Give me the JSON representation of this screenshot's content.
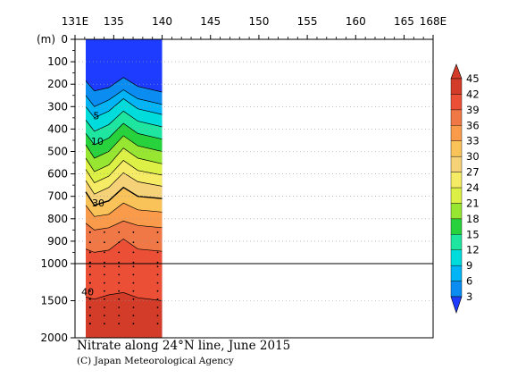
{
  "chart_data": {
    "type": "heatmap",
    "title": "Nitrate along 24°N line, June 2015",
    "credit": "(C) Japan Meteorological Agency",
    "xlabel": "",
    "ylabel": "(m)",
    "x_ticks": [
      "131E",
      "135",
      "140",
      "145",
      "150",
      "155",
      "160",
      "165",
      "168E"
    ],
    "xlim": [
      131,
      168
    ],
    "y_ticks_upper": [
      "0",
      "100",
      "200",
      "300",
      "400",
      "500",
      "600",
      "700",
      "800",
      "900",
      "1000"
    ],
    "y_ticks_lower": [
      "1500",
      "2000"
    ],
    "ylim": [
      0,
      2000
    ],
    "y_axis_break": 1000,
    "data_extent_lon": [
      131,
      140
    ],
    "station_lons": [
      131.5,
      133,
      134.5,
      136,
      137.5,
      139
    ],
    "colorbar_levels": [
      3,
      6,
      9,
      12,
      15,
      18,
      21,
      24,
      27,
      30,
      33,
      36,
      39,
      42,
      45
    ],
    "colorbar_colors": [
      "#1e3cff",
      "#0a8cf0",
      "#00b4f5",
      "#00dcdc",
      "#1ee6a0",
      "#28d23c",
      "#96e632",
      "#dcf046",
      "#f5eb64",
      "#f5d278",
      "#fac35a",
      "#fa9b4b",
      "#f07846",
      "#eb5037",
      "#d23c28"
    ],
    "colorbar_extend": "both",
    "contour_labels": [
      {
        "value": "5",
        "lon": 133.2,
        "depth": 340
      },
      {
        "value": "10",
        "lon": 133.3,
        "depth": 455
      },
      {
        "value": "30",
        "lon": 133.4,
        "depth": 730
      },
      {
        "value": "40",
        "lon": 132.3,
        "depth": 1380
      }
    ],
    "profile_isolines": [
      {
        "level": 3,
        "depth": [
          185,
          230,
          215,
          170,
          210,
          235
        ]
      },
      {
        "level": 6,
        "depth": [
          250,
          300,
          270,
          225,
          265,
          290
        ]
      },
      {
        "level": 9,
        "depth": [
          300,
          350,
          320,
          265,
          310,
          335
        ]
      },
      {
        "level": 12,
        "depth": [
          360,
          410,
          380,
          320,
          365,
          390
        ]
      },
      {
        "level": 15,
        "depth": [
          420,
          470,
          440,
          375,
          420,
          445
        ]
      },
      {
        "level": 18,
        "depth": [
          470,
          530,
          500,
          430,
          475,
          500
        ]
      },
      {
        "level": 21,
        "depth": [
          530,
          590,
          560,
          485,
          530,
          555
        ]
      },
      {
        "level": 24,
        "depth": [
          580,
          640,
          610,
          540,
          585,
          605
        ]
      },
      {
        "level": 27,
        "depth": [
          630,
          690,
          660,
          595,
          635,
          655
        ]
      },
      {
        "level": 30,
        "depth": [
          680,
          740,
          720,
          660,
          700,
          710
        ]
      },
      {
        "level": 33,
        "depth": [
          740,
          790,
          780,
          730,
          760,
          770
        ]
      },
      {
        "level": 36,
        "depth": [
          820,
          850,
          840,
          810,
          830,
          840
        ]
      },
      {
        "level": 39,
        "depth": [
          935,
          950,
          940,
          890,
          935,
          945
        ]
      },
      {
        "level": 42,
        "depth": [
          1450,
          1480,
          1420,
          1390,
          1460,
          1500
        ]
      }
    ]
  }
}
